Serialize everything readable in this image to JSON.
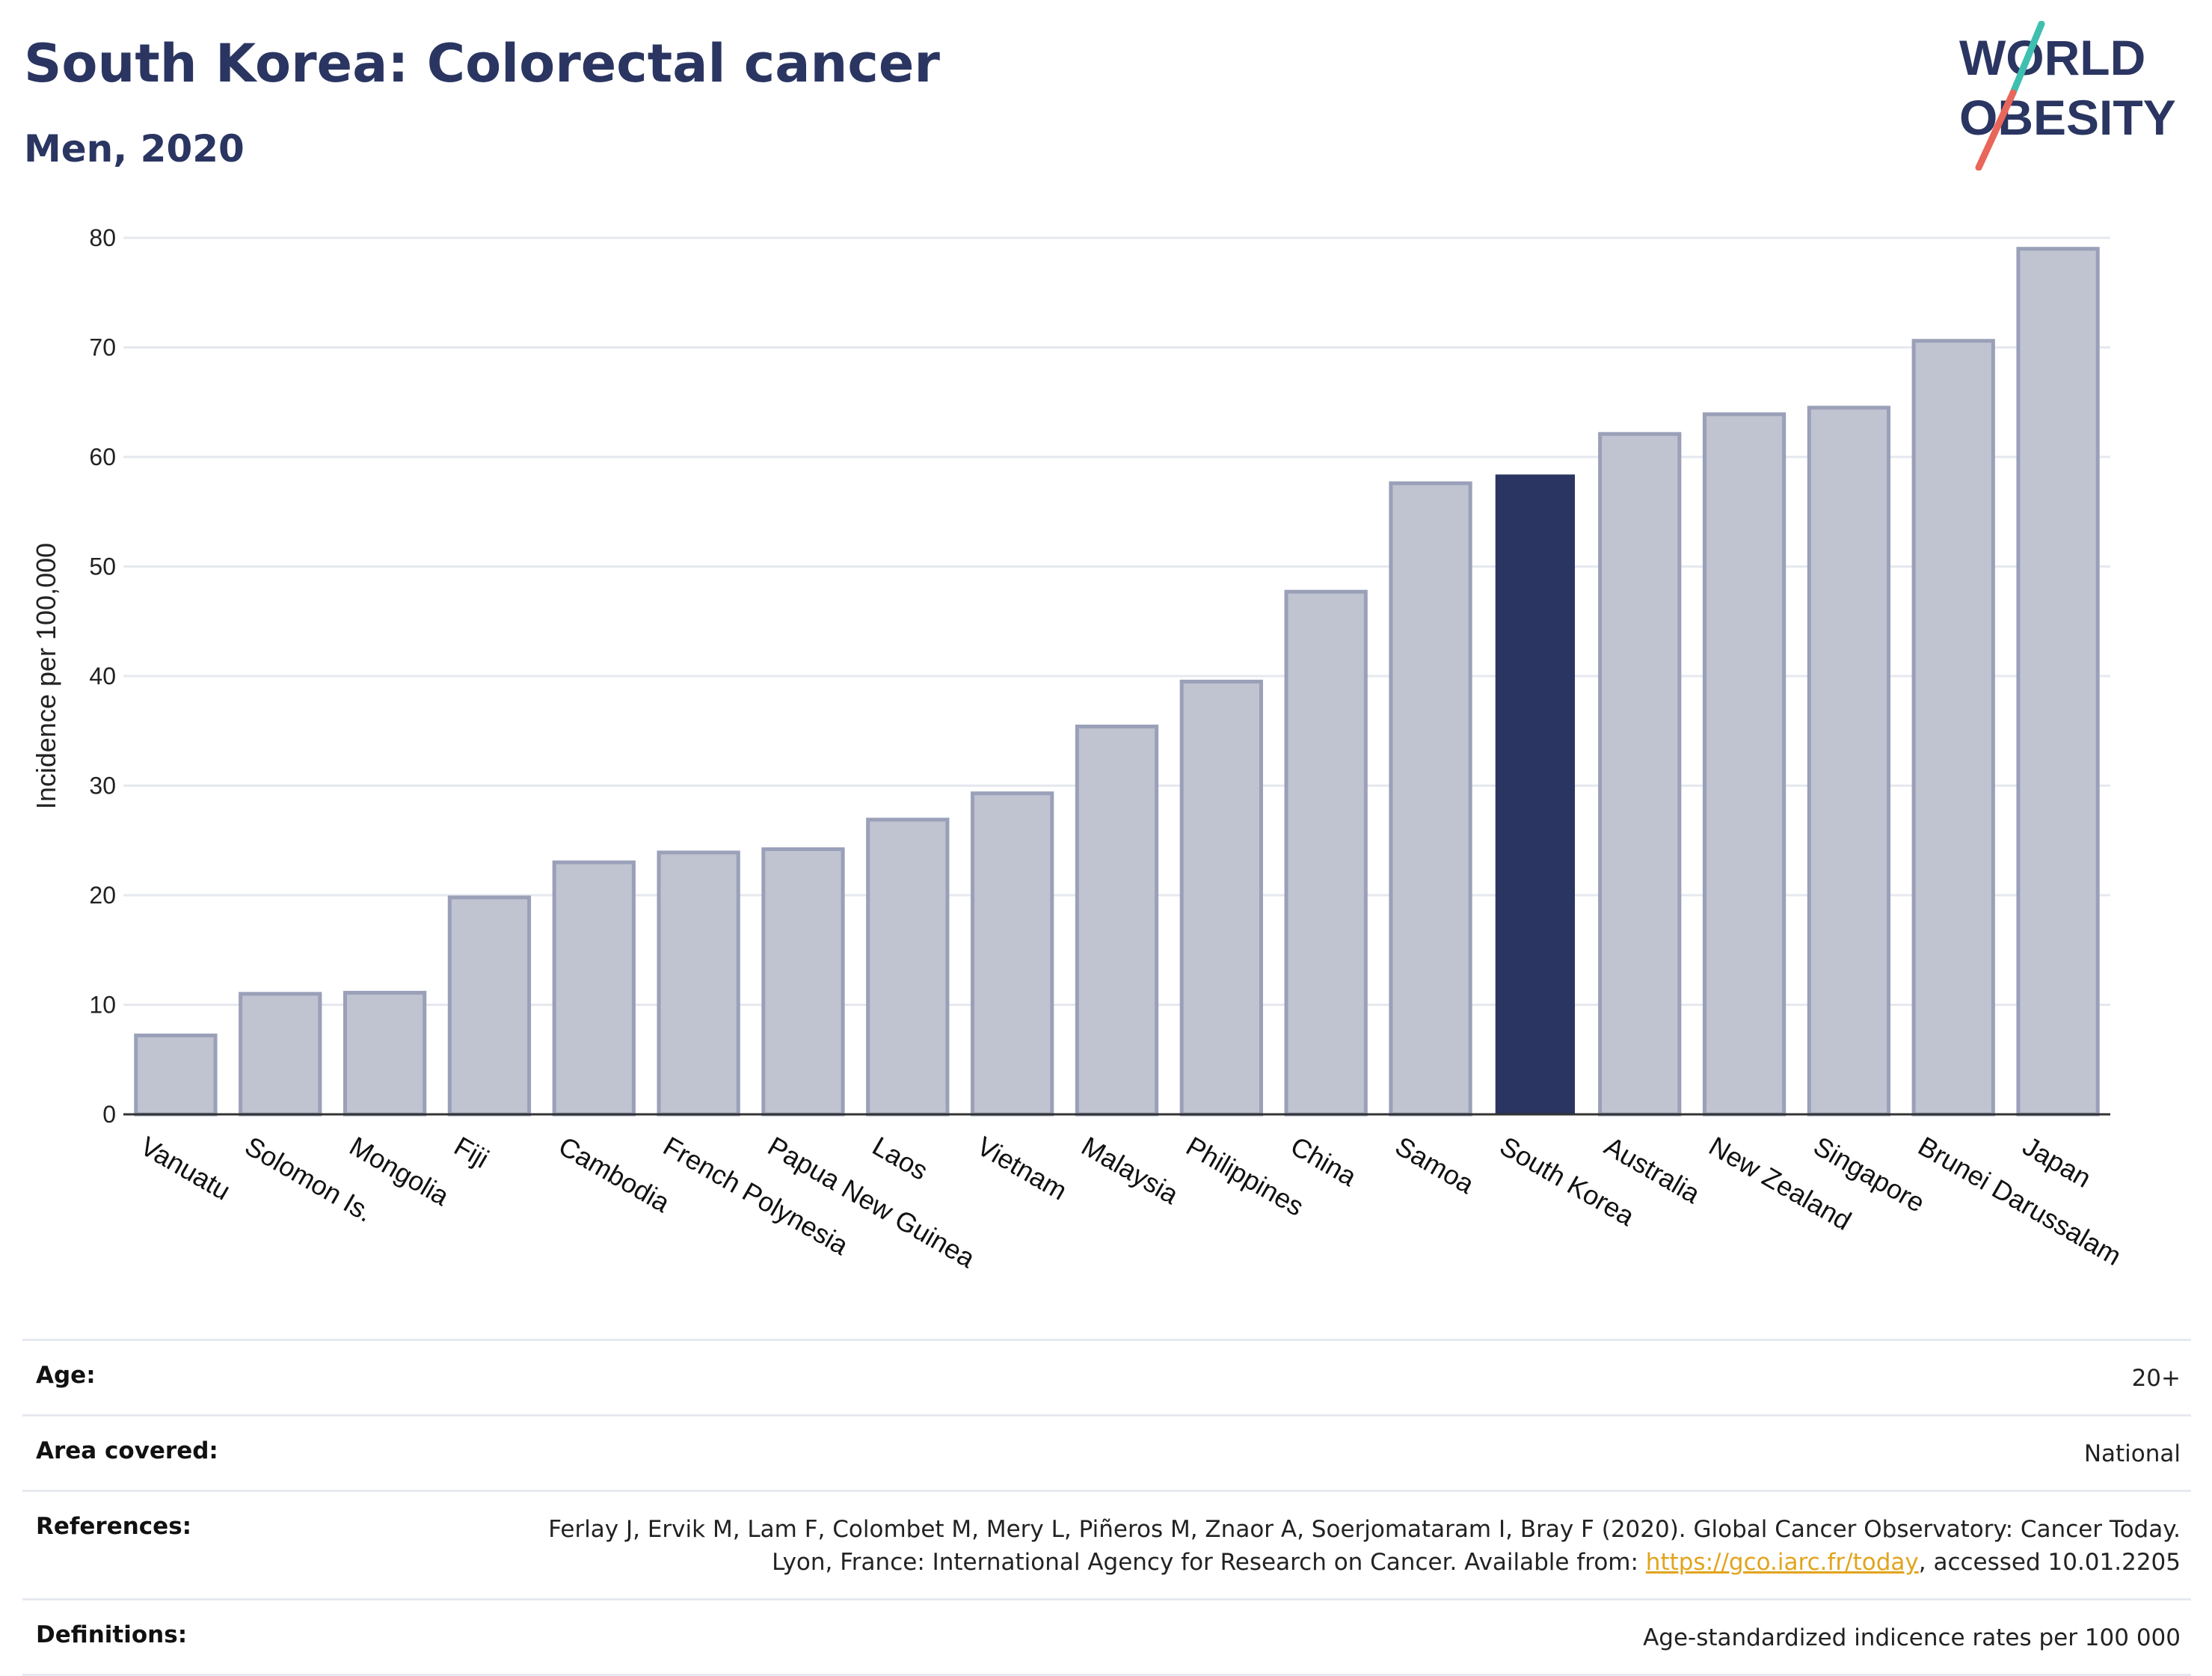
{
  "header": {
    "title": "South Korea: Colorectal cancer",
    "subtitle": "Men, 2020"
  },
  "logo": {
    "line1": "WORLD",
    "line2": "OBESITY",
    "colors": {
      "text": "#2a3561",
      "accent_teal": "#3fbfb0",
      "accent_red": "#e8665a"
    }
  },
  "chart_data": {
    "type": "bar",
    "title": "South Korea: Colorectal cancer",
    "subtitle": "Men, 2020",
    "xlabel": "",
    "ylabel": "Incidence per 100,000",
    "ylim": [
      0,
      80
    ],
    "yticks": [
      0,
      10,
      20,
      30,
      40,
      50,
      60,
      70,
      80
    ],
    "grid": true,
    "categories": [
      "Vanuatu",
      "Solomon Is.",
      "Mongolia",
      "Fiji",
      "Cambodia",
      "French Polynesia",
      "Papua New Guinea",
      "Laos",
      "Vietnam",
      "Malaysia",
      "Philippines",
      "China",
      "Samoa",
      "South Korea",
      "Australia",
      "New Zealand",
      "Singapore",
      "Brunei Darussalam",
      "Japan"
    ],
    "values": [
      7.2,
      11.0,
      11.1,
      19.8,
      23.0,
      23.9,
      24.2,
      26.9,
      29.3,
      35.4,
      39.5,
      47.7,
      57.6,
      58.4,
      62.1,
      63.9,
      64.5,
      70.6,
      79.0
    ],
    "highlight": "South Korea",
    "colors": {
      "bar": "#c0c3d0",
      "bar_edge": "#9aa0b8",
      "highlight": "#2a3561"
    }
  },
  "info": {
    "age_label": "Age:",
    "age_value": "20+",
    "area_label": "Area covered:",
    "area_value": "National",
    "references_label": "References:",
    "references_text_1": "Ferlay J, Ervik M, Lam F, Colombet M, Mery L, Piñeros M, Znaor A, Soerjomataram I, Bray F (2020). Global Cancer Observatory: Cancer Today. Lyon, France: International Agency for Research on Cancer. Available from: ",
    "references_link": "https://gco.iarc.fr/today",
    "references_text_2": ", accessed 10.01.2205",
    "definitions_label": "Definitions:",
    "definitions_value": "Age-standardized indicence rates per 100 000"
  }
}
